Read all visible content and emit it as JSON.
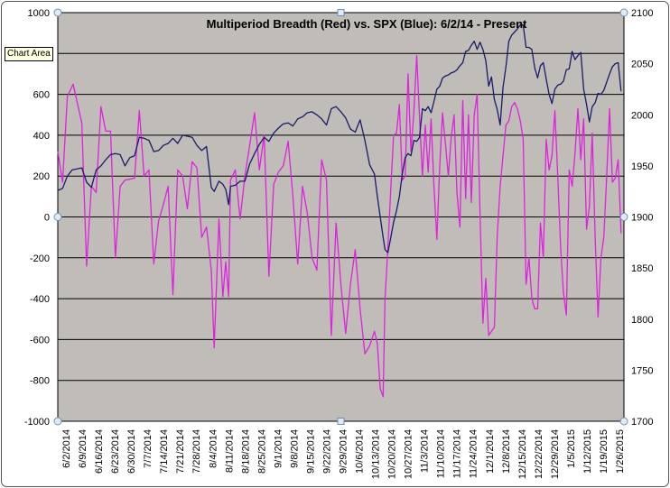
{
  "chart_data": {
    "type": "line",
    "title": "Multiperiod Breadth (Red) vs. SPX (Blue):  6/2/14 - Present",
    "tooltip": "Chart Area",
    "colors": {
      "series_blue": "#1a1a6e",
      "series_red": "#e020e0",
      "plot_bg": "#c0bcb7"
    },
    "y_left": {
      "min": -1000,
      "max": 1000,
      "step": 200,
      "ticks": [
        "1000",
        "800",
        "600",
        "400",
        "200",
        "0",
        "-200",
        "-400",
        "-600",
        "-800",
        "-1000"
      ]
    },
    "y_right": {
      "min": 1700,
      "max": 2100,
      "step": 50,
      "ticks": [
        "2100",
        "2050",
        "2000",
        "1950",
        "1900",
        "1850",
        "1800",
        "1750",
        "1700"
      ]
    },
    "x_labels": [
      "6/2/2014",
      "6/9/2014",
      "6/16/2014",
      "6/23/2014",
      "6/30/2014",
      "7/7/2014",
      "7/14/2014",
      "7/21/2014",
      "7/28/2014",
      "8/4/2014",
      "8/11/2014",
      "8/18/2014",
      "8/25/2014",
      "9/1/2014",
      "9/8/2014",
      "9/15/2014",
      "9/22/2014",
      "9/29/2014",
      "10/6/2014",
      "10/13/2014",
      "10/20/2014",
      "10/27/2014",
      "11/3/2014",
      "11/10/2014",
      "11/17/2014",
      "11/24/2014",
      "12/1/2014",
      "12/8/2014",
      "12/15/2014",
      "12/22/2014",
      "12/29/2014",
      "1/5/2015",
      "1/12/2015",
      "1/19/2015",
      "1/26/2015"
    ],
    "series": [
      {
        "axis": "left",
        "points": [
          [
            0,
            320
          ],
          [
            0.5,
            170
          ],
          [
            1,
            590
          ],
          [
            1.6,
            650
          ],
          [
            2.5,
            460
          ],
          [
            3,
            -240
          ],
          [
            3.5,
            150
          ],
          [
            4,
            120
          ],
          [
            4.5,
            540
          ],
          [
            5,
            420
          ],
          [
            5.5,
            420
          ],
          [
            6,
            -200
          ],
          [
            6.5,
            150
          ],
          [
            7,
            180
          ],
          [
            8,
            190
          ],
          [
            8.5,
            520
          ],
          [
            9,
            200
          ],
          [
            9.5,
            230
          ],
          [
            10,
            -230
          ],
          [
            10.5,
            -20
          ],
          [
            11,
            60
          ],
          [
            11.5,
            150
          ],
          [
            12,
            -380
          ],
          [
            12.5,
            230
          ],
          [
            13,
            200
          ],
          [
            13.5,
            40
          ],
          [
            14,
            270
          ],
          [
            14.5,
            240
          ],
          [
            15,
            -100
          ],
          [
            15.5,
            -50
          ],
          [
            16,
            -260
          ],
          [
            16.3,
            -640
          ],
          [
            16.8,
            -10
          ],
          [
            17.2,
            -390
          ],
          [
            17.5,
            -220
          ],
          [
            17.8,
            -390
          ],
          [
            18,
            180
          ],
          [
            18.5,
            230
          ],
          [
            19,
            -10
          ],
          [
            19.5,
            200
          ],
          [
            20,
            350
          ],
          [
            20.5,
            510
          ],
          [
            21,
            230
          ],
          [
            21.5,
            400
          ],
          [
            22,
            -290
          ],
          [
            22.5,
            160
          ],
          [
            23,
            220
          ],
          [
            23.5,
            250
          ],
          [
            24,
            370
          ],
          [
            24.5,
            100
          ],
          [
            25,
            -230
          ],
          [
            25.5,
            150
          ],
          [
            26,
            20
          ],
          [
            26.5,
            -200
          ],
          [
            27,
            -260
          ],
          [
            27.5,
            280
          ],
          [
            28,
            180
          ],
          [
            28.5,
            -580
          ],
          [
            29,
            -30
          ],
          [
            29.5,
            -330
          ],
          [
            30,
            -570
          ],
          [
            30.5,
            -330
          ],
          [
            31,
            -160
          ],
          [
            31.5,
            -450
          ],
          [
            32,
            -670
          ],
          [
            32.5,
            -630
          ],
          [
            33,
            -560
          ],
          [
            33.3,
            -620
          ],
          [
            33.6,
            -840
          ],
          [
            33.9,
            -880
          ],
          [
            34.1,
            -400
          ],
          [
            34.4,
            -150
          ],
          [
            34.7,
            140
          ],
          [
            35,
            400
          ],
          [
            35.3,
            410
          ],
          [
            35.6,
            550
          ],
          [
            35.9,
            180
          ],
          [
            36.2,
            200
          ],
          [
            36.5,
            700
          ],
          [
            36.8,
            320
          ],
          [
            37.1,
            510
          ],
          [
            37.4,
            790
          ],
          [
            37.7,
            490
          ],
          [
            38,
            200
          ],
          [
            38.3,
            450
          ],
          [
            38.6,
            220
          ],
          [
            38.9,
            480
          ],
          [
            39.2,
            150
          ],
          [
            39.5,
            -110
          ],
          [
            39.8,
            250
          ],
          [
            40.1,
            510
          ],
          [
            40.4,
            360
          ],
          [
            40.7,
            200
          ],
          [
            41,
            390
          ],
          [
            41.3,
            500
          ],
          [
            41.6,
            120
          ],
          [
            41.9,
            -50
          ],
          [
            42.2,
            570
          ],
          [
            42.5,
            90
          ],
          [
            42.8,
            500
          ],
          [
            43.1,
            70
          ],
          [
            43.4,
            500
          ],
          [
            43.7,
            600
          ],
          [
            44,
            20
          ],
          [
            44.3,
            -520
          ],
          [
            44.6,
            -300
          ],
          [
            44.9,
            -580
          ],
          [
            45.2,
            -560
          ],
          [
            45.5,
            -540
          ],
          [
            45.8,
            -90
          ],
          [
            46.1,
            150
          ],
          [
            46.4,
            300
          ],
          [
            46.7,
            450
          ],
          [
            47,
            470
          ],
          [
            47.3,
            540
          ],
          [
            47.6,
            560
          ],
          [
            47.9,
            530
          ],
          [
            48.2,
            470
          ],
          [
            48.5,
            380
          ],
          [
            48.8,
            -330
          ],
          [
            49.1,
            -200
          ],
          [
            49.4,
            -400
          ],
          [
            49.7,
            -450
          ],
          [
            50,
            -450
          ],
          [
            50.3,
            -30
          ],
          [
            50.6,
            -200
          ],
          [
            50.9,
            380
          ],
          [
            51.2,
            230
          ],
          [
            51.5,
            300
          ],
          [
            51.8,
            520
          ],
          [
            52.1,
            200
          ],
          [
            52.4,
            -150
          ],
          [
            52.7,
            -370
          ],
          [
            53,
            -480
          ],
          [
            53.3,
            230
          ],
          [
            53.6,
            150
          ],
          [
            53.9,
            310
          ],
          [
            54.2,
            530
          ],
          [
            54.5,
            280
          ],
          [
            54.8,
            480
          ],
          [
            55.1,
            -60
          ],
          [
            55.4,
            50
          ],
          [
            55.7,
            410
          ],
          [
            56,
            -100
          ],
          [
            56.3,
            -490
          ],
          [
            56.6,
            -200
          ],
          [
            56.9,
            -100
          ],
          [
            57.2,
            200
          ],
          [
            57.5,
            530
          ],
          [
            57.8,
            170
          ],
          [
            58.1,
            190
          ],
          [
            58.4,
            280
          ],
          [
            58.7,
            -80
          ]
        ]
      },
      {
        "axis": "right",
        "points": [
          [
            0,
            1926
          ],
          [
            0.5,
            1928
          ],
          [
            1,
            1940
          ],
          [
            1.5,
            1946
          ],
          [
            2.5,
            1948
          ],
          [
            3,
            1934
          ],
          [
            3.5,
            1929
          ],
          [
            4,
            1946
          ],
          [
            4.5,
            1950
          ],
          [
            5,
            1956
          ],
          [
            5.5,
            1961
          ],
          [
            6,
            1962
          ],
          [
            6.5,
            1961
          ],
          [
            7,
            1950
          ],
          [
            7.5,
            1958
          ],
          [
            8,
            1960
          ],
          [
            8.5,
            1978
          ],
          [
            9,
            1977
          ],
          [
            9.5,
            1975
          ],
          [
            10,
            1964
          ],
          [
            10.5,
            1965
          ],
          [
            11,
            1970
          ],
          [
            11.5,
            1972
          ],
          [
            12,
            1977
          ],
          [
            12.5,
            1972
          ],
          [
            13,
            1980
          ],
          [
            13.5,
            1979
          ],
          [
            14,
            1978
          ],
          [
            14.5,
            1970
          ],
          [
            15,
            1965
          ],
          [
            15.5,
            1969
          ],
          [
            16,
            1929
          ],
          [
            16.3,
            1925
          ],
          [
            16.8,
            1935
          ],
          [
            17.2,
            1932
          ],
          [
            17.5,
            1927
          ],
          [
            17.8,
            1912
          ],
          [
            18,
            1930
          ],
          [
            18.5,
            1931
          ],
          [
            19,
            1935
          ],
          [
            19.5,
            1935
          ],
          [
            20,
            1952
          ],
          [
            20.5,
            1962
          ],
          [
            21,
            1971
          ],
          [
            21.5,
            1978
          ],
          [
            22,
            1974
          ],
          [
            22.5,
            1982
          ],
          [
            23,
            1987
          ],
          [
            23.5,
            1991
          ],
          [
            24,
            1992
          ],
          [
            24.5,
            1989
          ],
          [
            25,
            1996
          ],
          [
            25.5,
            1998
          ],
          [
            26,
            2002
          ],
          [
            26.5,
            2003
          ],
          [
            27,
            2000
          ],
          [
            27.5,
            1996
          ],
          [
            28,
            1990
          ],
          [
            28.5,
            2006
          ],
          [
            29,
            2008
          ],
          [
            29.5,
            2003
          ],
          [
            30,
            1997
          ],
          [
            30.5,
            1986
          ],
          [
            31,
            1983
          ],
          [
            31.5,
            1995
          ],
          [
            32,
            1975
          ],
          [
            32.5,
            1951
          ],
          [
            33,
            1942
          ],
          [
            33.3,
            1920
          ],
          [
            33.6,
            1900
          ],
          [
            33.9,
            1880
          ],
          [
            34.1,
            1868
          ],
          [
            34.4,
            1865
          ],
          [
            34.7,
            1880
          ],
          [
            35,
            1895
          ],
          [
            35.3,
            1906
          ],
          [
            35.6,
            1920
          ],
          [
            35.9,
            1942
          ],
          [
            36.2,
            1958
          ],
          [
            36.5,
            1962
          ],
          [
            36.8,
            1960
          ],
          [
            37.1,
            1975
          ],
          [
            37.4,
            1974
          ],
          [
            37.7,
            1978
          ],
          [
            38,
            2006
          ],
          [
            38.3,
            2004
          ],
          [
            38.6,
            2008
          ],
          [
            38.9,
            2002
          ],
          [
            39.2,
            2013
          ],
          [
            39.5,
            2025
          ],
          [
            39.8,
            2028
          ],
          [
            40.1,
            2036
          ],
          [
            40.4,
            2038
          ],
          [
            40.7,
            2039
          ],
          [
            41,
            2041
          ],
          [
            41.3,
            2042
          ],
          [
            41.6,
            2044
          ],
          [
            41.9,
            2048
          ],
          [
            42.2,
            2051
          ],
          [
            42.5,
            2062
          ],
          [
            42.8,
            2063
          ],
          [
            43.1,
            2068
          ],
          [
            43.4,
            2072
          ],
          [
            43.7,
            2064
          ],
          [
            44,
            2071
          ],
          [
            44.3,
            2064
          ],
          [
            44.6,
            2053
          ],
          [
            44.9,
            2028
          ],
          [
            45.2,
            2037
          ],
          [
            45.5,
            2015
          ],
          [
            45.8,
            2005
          ],
          [
            46.1,
            1990
          ],
          [
            46.4,
            2027
          ],
          [
            46.7,
            2047
          ],
          [
            47,
            2072
          ],
          [
            47.3,
            2078
          ],
          [
            47.6,
            2081
          ],
          [
            47.9,
            2084
          ],
          [
            48.2,
            2088
          ],
          [
            48.5,
            2088
          ],
          [
            48.8,
            2066
          ],
          [
            49.1,
            2066
          ],
          [
            49.4,
            2064
          ],
          [
            49.7,
            2046
          ],
          [
            50,
            2036
          ],
          [
            50.3,
            2048
          ],
          [
            50.6,
            2051
          ],
          [
            50.9,
            2035
          ],
          [
            51.2,
            2020
          ],
          [
            51.5,
            2011
          ],
          [
            51.8,
            2025
          ],
          [
            52.1,
            2029
          ],
          [
            52.4,
            2030
          ],
          [
            52.7,
            2033
          ],
          [
            53,
            2044
          ],
          [
            53.3,
            2045
          ],
          [
            53.6,
            2062
          ],
          [
            53.9,
            2054
          ],
          [
            54.2,
            2058
          ],
          [
            54.5,
            2061
          ],
          [
            54.8,
            2025
          ],
          [
            55.1,
            2010
          ],
          [
            55.4,
            1993
          ],
          [
            55.7,
            2008
          ],
          [
            56,
            2012
          ],
          [
            56.3,
            2021
          ],
          [
            56.6,
            2020
          ],
          [
            56.9,
            2024
          ],
          [
            57.2,
            2032
          ],
          [
            57.5,
            2040
          ],
          [
            57.8,
            2047
          ],
          [
            58.1,
            2050
          ],
          [
            58.4,
            2051
          ],
          [
            58.7,
            2023
          ]
        ]
      }
    ]
  }
}
